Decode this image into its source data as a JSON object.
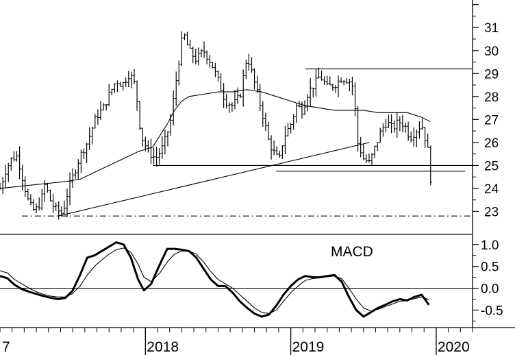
{
  "chart_data": [
    {
      "type": "ohlc",
      "panel": "price",
      "title": "",
      "x_axis": {
        "labels": [
          "7",
          "2018",
          "2019",
          "2020"
        ],
        "label_x": [
          2017.0,
          2018.0,
          2019.0,
          2020.0
        ]
      },
      "y_axis": {
        "side": "right",
        "ylim": [
          22.0,
          32.2
        ],
        "ticks": [
          "23",
          "24",
          "25",
          "26",
          "27",
          "28",
          "29",
          "30",
          "31"
        ]
      },
      "xlim": [
        2017.0,
        2020.25
      ],
      "price_series": [
        [
          2017.0,
          24.0
        ],
        [
          2017.04,
          24.8
        ],
        [
          2017.08,
          25.3
        ],
        [
          2017.12,
          25.4
        ],
        [
          2017.16,
          24.3
        ],
        [
          2017.2,
          23.3
        ],
        [
          2017.24,
          23.0
        ],
        [
          2017.28,
          23.4
        ],
        [
          2017.31,
          24.2
        ],
        [
          2017.35,
          23.4
        ],
        [
          2017.38,
          23.1
        ],
        [
          2017.41,
          23.0
        ],
        [
          2017.43,
          22.9
        ],
        [
          2017.46,
          23.7
        ],
        [
          2017.5,
          24.5
        ],
        [
          2017.55,
          25.4
        ],
        [
          2017.6,
          26.0
        ],
        [
          2017.66,
          27.1
        ],
        [
          2017.71,
          27.5
        ],
        [
          2017.76,
          28.2
        ],
        [
          2017.8,
          28.7
        ],
        [
          2017.84,
          28.5
        ],
        [
          2017.89,
          29.0
        ],
        [
          2017.93,
          28.5
        ],
        [
          2017.97,
          26.3
        ],
        [
          2018.02,
          25.6
        ],
        [
          2018.07,
          25.3
        ],
        [
          2018.12,
          25.8
        ],
        [
          2018.17,
          26.8
        ],
        [
          2018.22,
          29.1
        ],
        [
          2018.26,
          30.8
        ],
        [
          2018.3,
          30.0
        ],
        [
          2018.35,
          29.6
        ],
        [
          2018.4,
          30.0
        ],
        [
          2018.45,
          29.5
        ],
        [
          2018.5,
          28.7
        ],
        [
          2018.55,
          27.8
        ],
        [
          2018.6,
          27.6
        ],
        [
          2018.65,
          28.0
        ],
        [
          2018.7,
          29.8
        ],
        [
          2018.75,
          28.6
        ],
        [
          2018.8,
          27.4
        ],
        [
          2018.85,
          26.0
        ],
        [
          2018.88,
          25.6
        ],
        [
          2018.92,
          25.2
        ],
        [
          2018.95,
          26.2
        ],
        [
          2019.0,
          26.8
        ],
        [
          2019.04,
          27.6
        ],
        [
          2019.08,
          27.4
        ],
        [
          2019.12,
          28.2
        ],
        [
          2019.16,
          28.5
        ],
        [
          2019.2,
          28.9
        ],
        [
          2019.25,
          28.4
        ],
        [
          2019.3,
          28.5
        ],
        [
          2019.35,
          28.8
        ],
        [
          2019.4,
          28.7
        ],
        [
          2019.43,
          28.4
        ],
        [
          2019.46,
          26.0
        ],
        [
          2019.5,
          25.3
        ],
        [
          2019.54,
          25.1
        ],
        [
          2019.58,
          25.8
        ],
        [
          2019.62,
          26.5
        ],
        [
          2019.66,
          26.9
        ],
        [
          2019.7,
          26.6
        ],
        [
          2019.74,
          26.9
        ],
        [
          2019.78,
          26.8
        ],
        [
          2019.82,
          26.2
        ],
        [
          2019.86,
          26.5
        ],
        [
          2019.9,
          26.8
        ],
        [
          2019.94,
          25.8
        ],
        [
          2019.97,
          23.9
        ]
      ],
      "moving_average": [
        [
          2017.0,
          24.0
        ],
        [
          2017.15,
          24.1
        ],
        [
          2017.3,
          24.2
        ],
        [
          2017.45,
          24.3
        ],
        [
          2017.55,
          24.4
        ],
        [
          2017.65,
          24.7
        ],
        [
          2017.75,
          25.0
        ],
        [
          2017.85,
          25.3
        ],
        [
          2017.95,
          25.6
        ],
        [
          2018.0,
          25.7
        ],
        [
          2018.05,
          25.8
        ],
        [
          2018.1,
          26.3
        ],
        [
          2018.15,
          26.8
        ],
        [
          2018.2,
          27.4
        ],
        [
          2018.25,
          27.8
        ],
        [
          2018.3,
          28.0
        ],
        [
          2018.4,
          28.1
        ],
        [
          2018.5,
          28.2
        ],
        [
          2018.6,
          28.2
        ],
        [
          2018.7,
          28.3
        ],
        [
          2018.8,
          28.2
        ],
        [
          2018.9,
          28.0
        ],
        [
          2019.0,
          27.8
        ],
        [
          2019.1,
          27.6
        ],
        [
          2019.2,
          27.5
        ],
        [
          2019.3,
          27.4
        ],
        [
          2019.4,
          27.4
        ],
        [
          2019.5,
          27.4
        ],
        [
          2019.6,
          27.3
        ],
        [
          2019.7,
          27.3
        ],
        [
          2019.8,
          27.3
        ],
        [
          2019.9,
          27.1
        ],
        [
          2019.96,
          26.9
        ]
      ],
      "lines": [
        {
          "kind": "horizontal",
          "y": 29.2,
          "x": [
            2019.1,
            2020.25
          ],
          "style": "solid"
        },
        {
          "kind": "horizontal",
          "y": 25.0,
          "x": [
            2018.05,
            2020.25
          ],
          "style": "solid"
        },
        {
          "kind": "horizontal",
          "y": 24.75,
          "x": [
            2018.9,
            2020.2
          ],
          "style": "solid"
        },
        {
          "kind": "horizontal",
          "y": 22.8,
          "x": [
            2017.15,
            2020.25
          ],
          "style": "dash-dot"
        },
        {
          "kind": "trend",
          "from": [
            2017.4,
            22.8
          ],
          "to": [
            2019.54,
            26.0
          ],
          "style": "solid"
        }
      ]
    },
    {
      "type": "line",
      "panel": "macd",
      "title": "MACD",
      "y_axis": {
        "side": "right",
        "ylim": [
          -0.9,
          1.2
        ],
        "ticks": [
          "1.0",
          "0.5",
          "0.0",
          "-0.5"
        ]
      },
      "xlim": [
        2017.0,
        2020.25
      ],
      "zero_line": 0.0,
      "series": [
        {
          "style": "thick",
          "points": [
            [
              2017.0,
              0.28
            ],
            [
              2017.05,
              0.23
            ],
            [
              2017.1,
              0.08
            ],
            [
              2017.15,
              -0.02
            ],
            [
              2017.2,
              -0.08
            ],
            [
              2017.25,
              -0.13
            ],
            [
              2017.3,
              -0.18
            ],
            [
              2017.35,
              -0.22
            ],
            [
              2017.4,
              -0.25
            ],
            [
              2017.45,
              -0.22
            ],
            [
              2017.5,
              -0.05
            ],
            [
              2017.55,
              0.3
            ],
            [
              2017.6,
              0.7
            ],
            [
              2017.65,
              0.75
            ],
            [
              2017.7,
              0.85
            ],
            [
              2017.75,
              0.95
            ],
            [
              2017.8,
              1.05
            ],
            [
              2017.85,
              1.0
            ],
            [
              2017.9,
              0.7
            ],
            [
              2017.95,
              0.2
            ],
            [
              2017.99,
              -0.05
            ],
            [
              2018.04,
              0.1
            ],
            [
              2018.1,
              0.55
            ],
            [
              2018.15,
              0.9
            ],
            [
              2018.2,
              0.9
            ],
            [
              2018.25,
              0.88
            ],
            [
              2018.3,
              0.85
            ],
            [
              2018.35,
              0.7
            ],
            [
              2018.4,
              0.45
            ],
            [
              2018.45,
              0.2
            ],
            [
              2018.5,
              0.05
            ],
            [
              2018.55,
              0.05
            ],
            [
              2018.6,
              -0.1
            ],
            [
              2018.65,
              -0.3
            ],
            [
              2018.7,
              -0.45
            ],
            [
              2018.75,
              -0.58
            ],
            [
              2018.8,
              -0.65
            ],
            [
              2018.85,
              -0.6
            ],
            [
              2018.9,
              -0.4
            ],
            [
              2018.95,
              -0.15
            ],
            [
              2019.0,
              0.05
            ],
            [
              2019.05,
              0.2
            ],
            [
              2019.1,
              0.28
            ],
            [
              2019.15,
              0.25
            ],
            [
              2019.2,
              0.25
            ],
            [
              2019.25,
              0.28
            ],
            [
              2019.3,
              0.3
            ],
            [
              2019.35,
              0.15
            ],
            [
              2019.4,
              -0.2
            ],
            [
              2019.45,
              -0.5
            ],
            [
              2019.5,
              -0.65
            ],
            [
              2019.55,
              -0.55
            ],
            [
              2019.6,
              -0.45
            ],
            [
              2019.65,
              -0.38
            ],
            [
              2019.7,
              -0.3
            ],
            [
              2019.75,
              -0.25
            ],
            [
              2019.8,
              -0.28
            ],
            [
              2019.85,
              -0.2
            ],
            [
              2019.9,
              -0.15
            ],
            [
              2019.95,
              -0.38
            ]
          ]
        },
        {
          "style": "thin",
          "points": [
            [
              2017.0,
              0.4
            ],
            [
              2017.05,
              0.35
            ],
            [
              2017.1,
              0.2
            ],
            [
              2017.15,
              0.1
            ],
            [
              2017.2,
              0.0
            ],
            [
              2017.25,
              -0.08
            ],
            [
              2017.3,
              -0.14
            ],
            [
              2017.35,
              -0.18
            ],
            [
              2017.4,
              -0.2
            ],
            [
              2017.45,
              -0.2
            ],
            [
              2017.5,
              -0.12
            ],
            [
              2017.55,
              0.05
            ],
            [
              2017.6,
              0.3
            ],
            [
              2017.65,
              0.5
            ],
            [
              2017.7,
              0.65
            ],
            [
              2017.75,
              0.78
            ],
            [
              2017.8,
              0.88
            ],
            [
              2017.85,
              0.92
            ],
            [
              2017.9,
              0.82
            ],
            [
              2017.95,
              0.55
            ],
            [
              2017.99,
              0.25
            ],
            [
              2018.04,
              0.15
            ],
            [
              2018.1,
              0.35
            ],
            [
              2018.15,
              0.6
            ],
            [
              2018.2,
              0.78
            ],
            [
              2018.25,
              0.85
            ],
            [
              2018.3,
              0.85
            ],
            [
              2018.35,
              0.78
            ],
            [
              2018.4,
              0.6
            ],
            [
              2018.45,
              0.38
            ],
            [
              2018.5,
              0.2
            ],
            [
              2018.55,
              0.1
            ],
            [
              2018.6,
              0.0
            ],
            [
              2018.65,
              -0.15
            ],
            [
              2018.7,
              -0.3
            ],
            [
              2018.75,
              -0.45
            ],
            [
              2018.8,
              -0.55
            ],
            [
              2018.85,
              -0.58
            ],
            [
              2018.9,
              -0.5
            ],
            [
              2018.95,
              -0.3
            ],
            [
              2019.0,
              -0.1
            ],
            [
              2019.05,
              0.05
            ],
            [
              2019.1,
              0.18
            ],
            [
              2019.15,
              0.22
            ],
            [
              2019.2,
              0.24
            ],
            [
              2019.25,
              0.26
            ],
            [
              2019.3,
              0.28
            ],
            [
              2019.35,
              0.22
            ],
            [
              2019.4,
              0.0
            ],
            [
              2019.45,
              -0.25
            ],
            [
              2019.5,
              -0.45
            ],
            [
              2019.55,
              -0.52
            ],
            [
              2019.6,
              -0.48
            ],
            [
              2019.65,
              -0.42
            ],
            [
              2019.7,
              -0.36
            ],
            [
              2019.75,
              -0.3
            ],
            [
              2019.8,
              -0.28
            ],
            [
              2019.85,
              -0.24
            ],
            [
              2019.9,
              -0.2
            ],
            [
              2019.95,
              -0.26
            ]
          ]
        }
      ]
    }
  ]
}
